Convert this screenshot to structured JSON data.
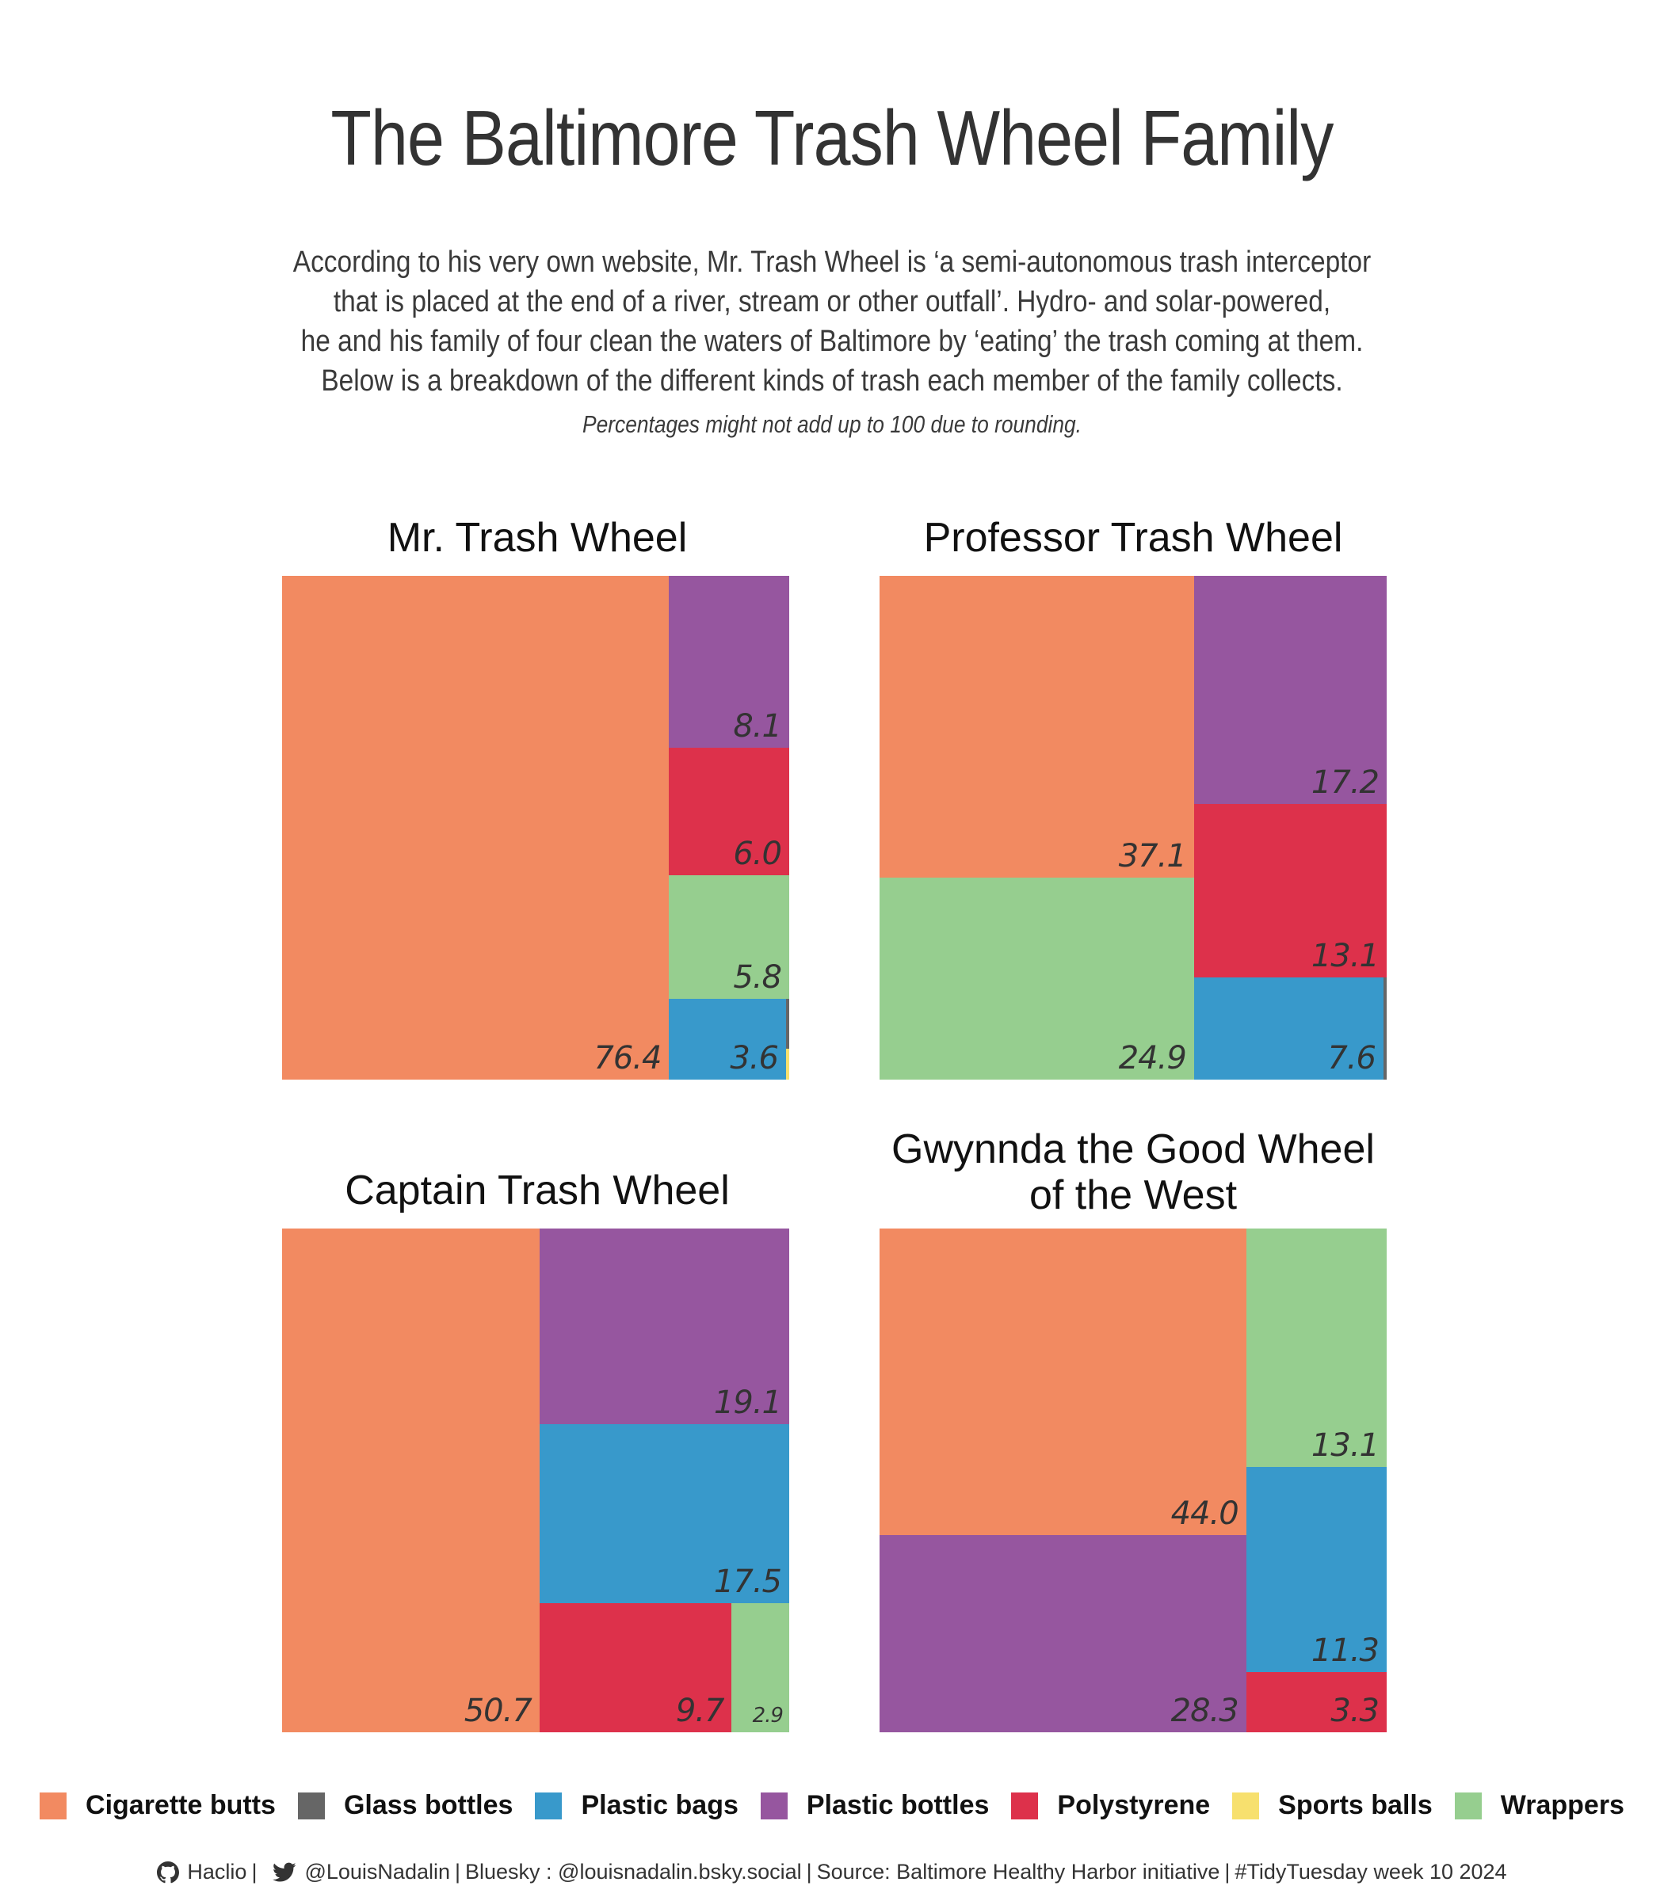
{
  "header": {
    "title": "The Baltimore Trash Wheel Family",
    "subtitle_lines": [
      "According to his very own website, Mr. Trash Wheel is ‘a semi-autonomous trash interceptor",
      "that is placed at the end of a river, stream or other outfall’. Hydro- and solar-powered,",
      "he and his family of four clean the waters of Baltimore by ‘eating’ the trash coming at them.",
      "Below is a breakdown of the different kinds of trash each member of the family collects."
    ],
    "note": "Percentages might not add up to 100 due to rounding."
  },
  "colors": {
    "Cigarette butts": "#F28A61",
    "Glass bottles": "#666666",
    "Plastic bags": "#3899CB",
    "Plastic bottles": "#96569F",
    "Polystyrene": "#DD314B",
    "Sports balls": "#F7E06E",
    "Wrappers": "#96CE8F"
  },
  "chart_data": [
    {
      "type": "treemap",
      "title": "Mr. Trash Wheel",
      "unit": "percent",
      "items": [
        {
          "category": "Cigarette butts",
          "value": 76.4,
          "label": "76.4"
        },
        {
          "category": "Plastic bottles",
          "value": 8.1,
          "label": "8.1"
        },
        {
          "category": "Polystyrene",
          "value": 6.0,
          "label": "6.0"
        },
        {
          "category": "Wrappers",
          "value": 5.8,
          "label": "5.8"
        },
        {
          "category": "Plastic bags",
          "value": 3.6,
          "label": "3.6"
        },
        {
          "category": "Glass bottles",
          "value": 0.1,
          "label": ""
        },
        {
          "category": "Sports balls",
          "value": 0.1,
          "label": ""
        }
      ]
    },
    {
      "type": "treemap",
      "title": "Professor Trash Wheel",
      "unit": "percent",
      "items": [
        {
          "category": "Cigarette butts",
          "value": 37.1,
          "label": "37.1"
        },
        {
          "category": "Wrappers",
          "value": 24.9,
          "label": "24.9"
        },
        {
          "category": "Plastic bottles",
          "value": 17.2,
          "label": "17.2"
        },
        {
          "category": "Polystyrene",
          "value": 13.1,
          "label": "13.1"
        },
        {
          "category": "Plastic bags",
          "value": 7.6,
          "label": "7.6"
        },
        {
          "category": "Glass bottles",
          "value": 0.1,
          "label": ""
        }
      ]
    },
    {
      "type": "treemap",
      "title": "Captain Trash Wheel",
      "unit": "percent",
      "items": [
        {
          "category": "Cigarette butts",
          "value": 50.7,
          "label": "50.7"
        },
        {
          "category": "Plastic bottles",
          "value": 19.1,
          "label": "19.1"
        },
        {
          "category": "Plastic bags",
          "value": 17.5,
          "label": "17.5"
        },
        {
          "category": "Polystyrene",
          "value": 9.7,
          "label": "9.7"
        },
        {
          "category": "Wrappers",
          "value": 2.9,
          "label": "2.9"
        }
      ]
    },
    {
      "type": "treemap",
      "title": "Gwynnda the Good Wheel of the West",
      "title_lines": [
        "Gwynnda the Good Wheel",
        "of the West"
      ],
      "unit": "percent",
      "items": [
        {
          "category": "Cigarette butts",
          "value": 44.0,
          "label": "44.0"
        },
        {
          "category": "Plastic bottles",
          "value": 28.3,
          "label": "28.3"
        },
        {
          "category": "Wrappers",
          "value": 13.1,
          "label": "13.1"
        },
        {
          "category": "Plastic bags",
          "value": 11.3,
          "label": "11.3"
        },
        {
          "category": "Polystyrene",
          "value": 3.3,
          "label": "3.3"
        }
      ]
    }
  ],
  "legend": {
    "position": "bottom",
    "items": [
      "Cigarette butts",
      "Glass bottles",
      "Plastic bags",
      "Plastic bottles",
      "Polystyrene",
      "Sports balls",
      "Wrappers"
    ]
  },
  "caption": {
    "github_icon": "github-icon",
    "github_user": "Haclio",
    "twitter_icon": "twitter-icon",
    "twitter_user": "@LouisNadalin",
    "bluesky": "Bluesky : @louisnadalin.bsky.social",
    "source": "Source: Baltimore Healthy Harbor initiative",
    "tag": "#TidyTuesday week 10 2024",
    "separator": "|"
  }
}
